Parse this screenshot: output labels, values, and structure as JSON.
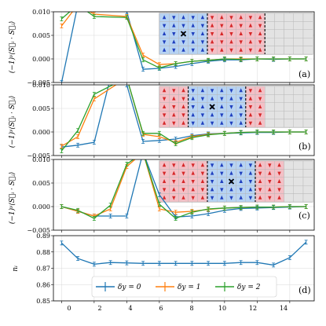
{
  "colors": {
    "delta0": "#1f77b4",
    "delta1": "#ff7f0e",
    "delta2": "#2ca02c",
    "cell_blue": "#b7d3f2",
    "cell_red": "#f3c0c6",
    "cell_grey": "#e3e3e3",
    "spin_blue": "#1f3fbf",
    "spin_red": "#d62728"
  },
  "panels": [
    {
      "label": "(a)",
      "ylabel": "(−1)ʸ⟨S⃗ᵢ · S⃗ⱼ⟩",
      "yticks": [
        "0.010",
        "0.005",
        "0.000",
        "−0.005"
      ]
    },
    {
      "label": "(b)",
      "ylabel": "(−1)ʸ⟨S⃗ᵢ · S⃗ⱼ⟩",
      "yticks": [
        "0.010",
        "0.005",
        "0.000",
        "−0.005"
      ]
    },
    {
      "label": "(c)",
      "ylabel": "(−1)ʸ⟨S⃗ᵢ · S⃗ⱼ⟩",
      "yticks": [
        "0.010",
        "0.005",
        "0.000",
        "−0.005"
      ]
    },
    {
      "label": "(d)",
      "ylabel": "nᵢ",
      "yticks": [
        "0.89",
        "0.88",
        "0.87",
        "0.86",
        "0.85"
      ]
    }
  ],
  "xticks": [
    "0",
    "2",
    "4",
    "6",
    "8",
    "10",
    "12",
    "14"
  ],
  "legend": [
    "δy = 0",
    "δy = 1",
    "δy = 2"
  ],
  "chart_data": [
    {
      "type": "line",
      "panel": "(a)",
      "ylim": [
        -0.005,
        0.01
      ],
      "xlim": [
        -0.5,
        15.5
      ],
      "grid": true,
      "series": [
        {
          "name": "δy = 0",
          "x": [
            0,
            1,
            4,
            5,
            6,
            7,
            8,
            9,
            10,
            11,
            12,
            13,
            14,
            15
          ],
          "y": [
            -0.005,
            0.0115,
            0.01,
            -0.0022,
            -0.002,
            -0.0016,
            -0.001,
            -0.0005,
            -0.0002,
            -0.0002,
            0.0,
            -0.0001,
            0.0,
            0.0
          ]
        },
        {
          "name": "δy = 1",
          "x": [
            0,
            1,
            2,
            4,
            5,
            6,
            7,
            8,
            9,
            10,
            11,
            12,
            13,
            14,
            15
          ],
          "y": [
            0.007,
            0.0115,
            0.0095,
            0.009,
            0.0008,
            -0.0012,
            -0.001,
            -0.0005,
            -0.0003,
            0.0,
            0.0,
            0.0,
            0.0,
            0.0,
            0.0
          ]
        },
        {
          "name": "δy = 2",
          "x": [
            0,
            1,
            2,
            4,
            5,
            6,
            7,
            8,
            9,
            10,
            11,
            12,
            13,
            14,
            15
          ],
          "y": [
            0.0085,
            0.0115,
            0.009,
            0.0088,
            -0.0002,
            -0.0019,
            -0.001,
            -0.0005,
            -0.0003,
            0.0,
            -0.0001,
            0.0,
            0.0,
            0.0,
            0.0
          ]
        }
      ]
    },
    {
      "type": "line",
      "panel": "(b)",
      "ylim": [
        -0.005,
        0.01
      ],
      "xlim": [
        -0.5,
        15.5
      ],
      "grid": true,
      "series": [
        {
          "name": "δy = 0",
          "x": [
            0,
            1,
            2,
            3,
            4,
            5,
            6,
            7,
            8,
            9,
            10,
            11,
            12,
            13,
            14,
            15
          ],
          "y": [
            -0.0032,
            -0.0028,
            -0.0022,
            0.0115,
            0.01,
            -0.002,
            -0.0018,
            -0.0015,
            -0.0008,
            -0.0004,
            -0.0003,
            -0.0002,
            -0.0001,
            -0.0001,
            0.0,
            0.0
          ]
        },
        {
          "name": "δy = 1",
          "x": [
            0,
            1,
            2,
            4,
            5,
            6,
            7,
            8,
            9,
            10,
            11,
            12,
            13,
            14,
            15
          ],
          "y": [
            -0.003,
            -0.001,
            0.007,
            0.0115,
            -0.0005,
            -0.001,
            -0.0022,
            -0.001,
            -0.0005,
            -0.0003,
            -0.0001,
            0.0,
            0.0,
            0.0,
            0.0
          ]
        },
        {
          "name": "δy = 2",
          "x": [
            0,
            1,
            2,
            4,
            5,
            6,
            7,
            8,
            9,
            10,
            11,
            12,
            13,
            14,
            15
          ],
          "y": [
            -0.004,
            0.0003,
            0.008,
            0.0115,
            -0.0003,
            -0.0003,
            -0.0025,
            -0.0012,
            -0.0006,
            -0.0003,
            -0.0001,
            0.0,
            0.0,
            0.0,
            0.0
          ]
        }
      ]
    },
    {
      "type": "line",
      "panel": "(c)",
      "ylim": [
        -0.005,
        0.01
      ],
      "xlim": [
        -0.5,
        15.5
      ],
      "grid": true,
      "series": [
        {
          "name": "δy = 0",
          "x": [
            0,
            1,
            2,
            3,
            4,
            5,
            6,
            7,
            8,
            9,
            10,
            11,
            12,
            13,
            14,
            15
          ],
          "y": [
            0.0,
            -0.001,
            -0.002,
            -0.002,
            -0.002,
            0.0115,
            0.0025,
            -0.0022,
            -0.002,
            -0.0015,
            -0.0008,
            -0.0004,
            -0.0003,
            -0.0002,
            -0.0001,
            0.0
          ]
        },
        {
          "name": "δy = 1",
          "x": [
            0,
            1,
            2,
            3,
            4,
            5,
            6,
            7,
            8,
            9,
            10,
            11,
            12,
            13,
            14,
            15
          ],
          "y": [
            0.0,
            -0.001,
            -0.002,
            -0.0005,
            0.0085,
            0.0115,
            -0.0005,
            -0.0012,
            -0.001,
            -0.0006,
            -0.0003,
            -0.0002,
            -0.0001,
            -0.0001,
            0.0,
            0.0
          ]
        },
        {
          "name": "δy = 2",
          "x": [
            0,
            1,
            2,
            3,
            4,
            5,
            6,
            7,
            8,
            9,
            10,
            11,
            12,
            13,
            14,
            15
          ],
          "y": [
            0.0,
            -0.0008,
            -0.0025,
            0.0003,
            0.009,
            0.0115,
            0.0005,
            -0.0025,
            -0.0012,
            -0.0005,
            -0.0003,
            -0.0002,
            -0.0001,
            -0.0001,
            0.0,
            0.0
          ]
        }
      ]
    },
    {
      "type": "line",
      "panel": "(d)",
      "ylim": [
        0.85,
        0.89
      ],
      "xlim": [
        -0.5,
        15.5
      ],
      "grid": true,
      "legend_position": "bottom-center",
      "series": [
        {
          "name": "δy = 0",
          "x": [
            0,
            1,
            2,
            3,
            4,
            5,
            6,
            7,
            8,
            9,
            10,
            11,
            12,
            13,
            14,
            15
          ],
          "y": [
            0.8855,
            0.876,
            0.8725,
            0.8735,
            0.8733,
            0.873,
            0.873,
            0.873,
            0.873,
            0.873,
            0.873,
            0.8735,
            0.8735,
            0.872,
            0.8765,
            0.886
          ]
        }
      ]
    }
  ]
}
